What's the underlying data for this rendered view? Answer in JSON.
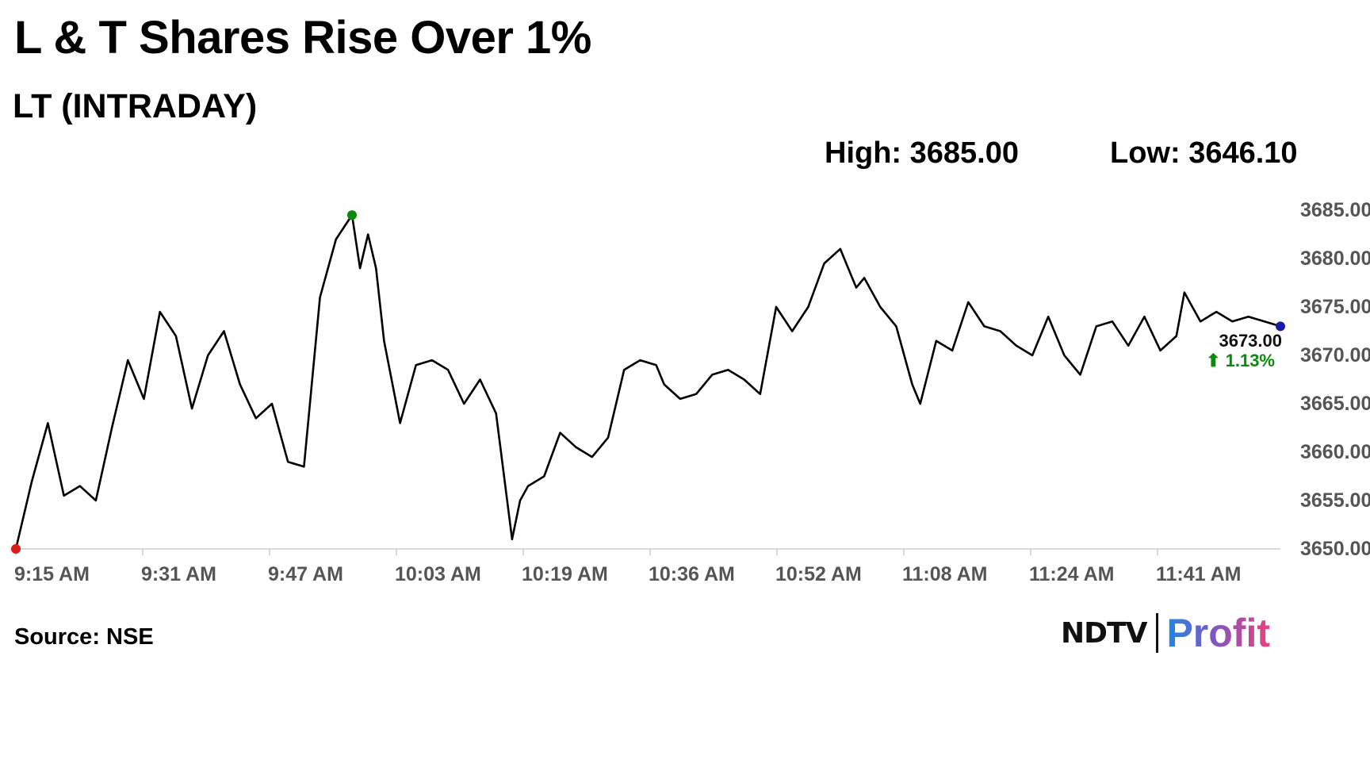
{
  "header": {
    "title": "L & T Shares Rise Over 1%",
    "subtitle": "LT (INTRADAY)"
  },
  "stats": {
    "high": "High: 3685.00",
    "low": "Low: 3646.10"
  },
  "footer": {
    "source": "Source: NSE"
  },
  "logo": {
    "left": "NDTV",
    "right": "Profit"
  },
  "colors": {
    "line": "#000000",
    "start_marker": "#e01b1b",
    "high_marker": "#0a8a0a",
    "end_marker": "#1a1aa8",
    "change_text": "#0a8a0a"
  },
  "chart_data": {
    "type": "line",
    "x_ticks": [
      "9:15 AM",
      "9:31 AM",
      "9:47 AM",
      "10:03 AM",
      "10:19 AM",
      "10:36 AM",
      "10:52 AM",
      "11:08 AM",
      "11:24 AM",
      "11:41 AM"
    ],
    "y_ticks": [
      "3650.00",
      "3655.00",
      "3660.00",
      "3665.00",
      "3670.00",
      "3675.00",
      "3680.00",
      "3685.00"
    ],
    "ylim": [
      3650,
      3685
    ],
    "last_price_label": "3673.00",
    "change_label": "⬆ 1.13%",
    "series": [
      {
        "x": [
          "9:15",
          "9:17",
          "9:19",
          "9:21",
          "9:23",
          "9:25",
          "9:27",
          "9:29",
          "9:31",
          "9:33",
          "9:35",
          "9:37",
          "9:39",
          "9:41",
          "9:43",
          "9:45",
          "9:47",
          "9:49",
          "9:51",
          "9:53",
          "9:55",
          "9:57",
          "9:58",
          "9:59",
          "10:00",
          "10:01",
          "10:03",
          "10:05",
          "10:07",
          "10:09",
          "10:11",
          "10:13",
          "10:15",
          "10:17",
          "10:18",
          "10:19",
          "10:21",
          "10:23",
          "10:25",
          "10:27",
          "10:29",
          "10:31",
          "10:33",
          "10:35",
          "10:36",
          "10:38",
          "10:40",
          "10:42",
          "10:44",
          "10:46",
          "10:48",
          "10:50",
          "10:52",
          "10:54",
          "10:56",
          "10:58",
          "11:00",
          "11:01",
          "11:03",
          "11:05",
          "11:07",
          "11:08",
          "11:10",
          "11:12",
          "11:14",
          "11:16",
          "11:18",
          "11:20",
          "11:22",
          "11:24",
          "11:26",
          "11:28",
          "11:30",
          "11:32",
          "11:34",
          "11:36",
          "11:38",
          "11:40",
          "11:41",
          "11:43",
          "11:45",
          "11:47",
          "11:49",
          "11:51",
          "11:53"
        ],
        "values": [
          3650.0,
          3657.0,
          3663.0,
          3655.5,
          3656.5,
          3655.0,
          3662.5,
          3669.5,
          3665.5,
          3674.5,
          3672.0,
          3664.5,
          3670.0,
          3672.5,
          3667.0,
          3663.5,
          3665.0,
          3659.0,
          3658.5,
          3676.0,
          3682.0,
          3684.5,
          3679.0,
          3682.5,
          3679.0,
          3671.5,
          3663.0,
          3669.0,
          3669.5,
          3668.5,
          3665.0,
          3667.5,
          3664.0,
          3651.0,
          3655.0,
          3656.5,
          3657.5,
          3662.0,
          3660.5,
          3659.5,
          3661.5,
          3668.5,
          3669.5,
          3669.0,
          3667.0,
          3665.5,
          3666.0,
          3668.0,
          3668.5,
          3667.5,
          3666.0,
          3675.0,
          3672.5,
          3675.0,
          3679.5,
          3681.0,
          3677.0,
          3678.0,
          3675.0,
          3673.0,
          3667.0,
          3665.0,
          3671.5,
          3670.5,
          3675.5,
          3673.0,
          3672.5,
          3671.0,
          3670.0,
          3674.0,
          3670.0,
          3668.0,
          3673.0,
          3673.5,
          3671.0,
          3674.0,
          3670.5,
          3672.0,
          3676.5,
          3673.5,
          3674.5,
          3673.5,
          3674.0,
          3673.5,
          3673.0
        ]
      }
    ]
  }
}
